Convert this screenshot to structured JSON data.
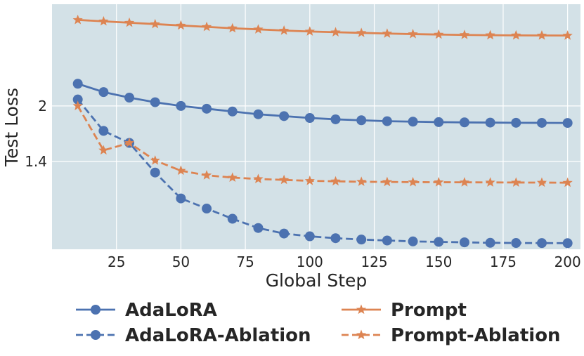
{
  "chart_data": {
    "type": "line",
    "title": "",
    "xlabel": "Global Step",
    "ylabel": "Test Loss",
    "xlim": [
      0,
      205
    ],
    "ylim": [
      0.45,
      3.1
    ],
    "xticks": [
      25,
      50,
      75,
      100,
      125,
      150,
      175,
      200
    ],
    "xtick_labels": [
      "25",
      "50",
      "75",
      "100",
      "125",
      "150",
      "175",
      "200"
    ],
    "yticks": [
      1.4,
      2
    ],
    "ytick_labels": [
      "1.4",
      "2"
    ],
    "grid": true,
    "legend_position": "bottom",
    "x": [
      10,
      20,
      30,
      40,
      50,
      60,
      70,
      80,
      90,
      100,
      110,
      120,
      130,
      140,
      150,
      160,
      170,
      180,
      190,
      200
    ],
    "series": [
      {
        "name": "AdaLoRA",
        "color": "#4C72B0",
        "linestyle": "solid",
        "marker": "circle",
        "values": [
          2.24,
          2.15,
          2.09,
          2.04,
          2.0,
          1.97,
          1.94,
          1.91,
          1.89,
          1.87,
          1.855,
          1.845,
          1.835,
          1.83,
          1.825,
          1.822,
          1.82,
          1.818,
          1.817,
          1.816
        ]
      },
      {
        "name": "AdaLoRA-Ablation",
        "color": "#4C72B0",
        "linestyle": "dashed",
        "marker": "circle",
        "values": [
          2.07,
          1.73,
          1.6,
          1.28,
          1.0,
          0.89,
          0.78,
          0.68,
          0.62,
          0.59,
          0.57,
          0.555,
          0.545,
          0.535,
          0.53,
          0.525,
          0.52,
          0.518,
          0.517,
          0.516
        ]
      },
      {
        "name": "Prompt",
        "color": "#DD8452",
        "linestyle": "solid",
        "marker": "star",
        "values": [
          2.93,
          2.915,
          2.9,
          2.885,
          2.87,
          2.855,
          2.84,
          2.828,
          2.815,
          2.805,
          2.797,
          2.79,
          2.783,
          2.777,
          2.772,
          2.768,
          2.765,
          2.763,
          2.762,
          2.761
        ]
      },
      {
        "name": "Prompt-Ablation",
        "color": "#DD8452",
        "linestyle": "dashed",
        "marker": "star",
        "values": [
          2.0,
          1.52,
          1.6,
          1.41,
          1.3,
          1.25,
          1.225,
          1.21,
          1.2,
          1.19,
          1.185,
          1.18,
          1.178,
          1.176,
          1.175,
          1.174,
          1.173,
          1.172,
          1.171,
          1.17
        ]
      }
    ]
  }
}
